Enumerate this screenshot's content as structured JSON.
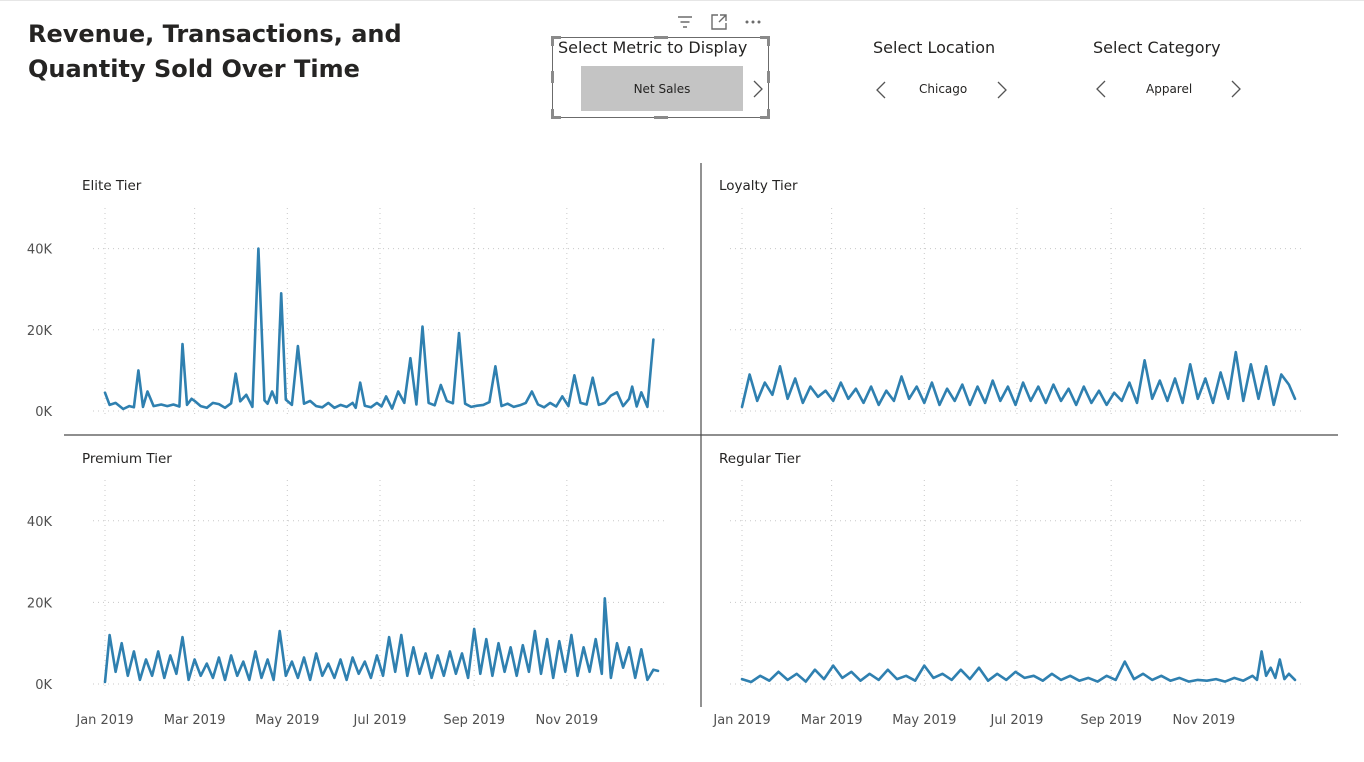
{
  "header": {
    "title": "Revenue, Transactions, and Quantity Sold Over Time"
  },
  "slicers": {
    "metric": {
      "header": "Select Metric to Display",
      "value": "Net Sales"
    },
    "location": {
      "header": "Select Location",
      "value": "Chicago"
    },
    "category": {
      "header": "Select Category",
      "value": "Apparel"
    }
  },
  "icons": {
    "visual_header": [
      "filter-icon",
      "focus-mode-icon",
      "more-options-icon"
    ],
    "slicer_nav": [
      "chevron-left-icon",
      "chevron-right-icon"
    ]
  },
  "colors": {
    "line": "#2F80B0",
    "grid": "#c8c8c8",
    "divider": "#4a4a4a"
  },
  "chart_data": [
    {
      "type": "line",
      "title": "Elite Tier",
      "xlim": [
        "2019-01-01",
        "2019-12-31"
      ],
      "ylim": [
        0,
        50000
      ],
      "y_ticks": [
        "0K",
        "20K",
        "40K"
      ],
      "x_ticks": [],
      "grid": true,
      "series": [
        {
          "x": [
            "2019-01-01",
            "2019-01-04",
            "2019-01-08",
            "2019-01-13",
            "2019-01-17",
            "2019-01-20",
            "2019-01-23",
            "2019-01-26",
            "2019-01-29",
            "2019-02-02",
            "2019-02-07",
            "2019-02-11",
            "2019-02-15",
            "2019-02-19",
            "2019-02-21",
            "2019-02-24",
            "2019-02-27",
            "2019-03-01",
            "2019-03-05",
            "2019-03-09",
            "2019-03-13",
            "2019-03-17",
            "2019-03-21",
            "2019-03-25",
            "2019-03-28",
            "2019-03-31",
            "2019-04-04",
            "2019-04-08",
            "2019-04-12",
            "2019-04-16",
            "2019-04-18",
            "2019-04-21",
            "2019-04-24",
            "2019-04-27",
            "2019-04-30",
            "2019-05-04",
            "2019-05-08",
            "2019-05-12",
            "2019-05-16",
            "2019-05-20",
            "2019-05-24",
            "2019-05-28",
            "2019-06-01",
            "2019-06-05",
            "2019-06-09",
            "2019-06-13",
            "2019-06-15",
            "2019-06-18",
            "2019-06-21",
            "2019-06-25",
            "2019-06-29",
            "2019-07-02",
            "2019-07-05",
            "2019-07-09",
            "2019-07-13",
            "2019-07-17",
            "2019-07-21",
            "2019-07-25",
            "2019-07-29",
            "2019-08-02",
            "2019-08-06",
            "2019-08-10",
            "2019-08-14",
            "2019-08-18",
            "2019-08-22",
            "2019-08-26",
            "2019-08-30",
            "2019-09-03",
            "2019-09-07",
            "2019-09-11",
            "2019-09-15",
            "2019-09-19",
            "2019-09-23",
            "2019-09-27",
            "2019-10-01",
            "2019-10-05",
            "2019-10-09",
            "2019-10-13",
            "2019-10-17",
            "2019-10-21",
            "2019-10-25",
            "2019-10-29",
            "2019-11-02",
            "2019-11-06",
            "2019-11-10",
            "2019-11-14",
            "2019-11-18",
            "2019-11-22",
            "2019-11-26",
            "2019-11-30",
            "2019-12-04",
            "2019-12-08",
            "2019-12-12",
            "2019-12-14",
            "2019-12-17",
            "2019-12-20",
            "2019-12-24",
            "2019-12-28"
          ],
          "y": [
            4500,
            1500,
            2000,
            500,
            1200,
            900,
            10000,
            1000,
            4800,
            1200,
            1600,
            1200,
            1600,
            1100,
            16500,
            1500,
            3000,
            2500,
            1200,
            800,
            2000,
            1700,
            800,
            1900,
            9200,
            2400,
            4000,
            1000,
            40000,
            2600,
            1800,
            4800,
            2000,
            29000,
            2800,
            1500,
            16000,
            1800,
            2500,
            1200,
            900,
            2000,
            800,
            1500,
            1000,
            2000,
            800,
            7000,
            1300,
            900,
            2000,
            1100,
            3600,
            600,
            4800,
            2000,
            13000,
            1600,
            20800,
            2000,
            1400,
            6400,
            2500,
            1900,
            19200,
            1800,
            1000,
            1300,
            1500,
            2200,
            11000,
            1200,
            1800,
            1000,
            1400,
            2000,
            4800,
            1600,
            900,
            2000,
            1100,
            3600,
            1200,
            8800,
            2000,
            1600,
            8200,
            1500,
            2000,
            3800,
            4600,
            1200,
            3000,
            6000,
            1100,
            4600,
            1000,
            17600
          ]
        }
      ]
    },
    {
      "type": "line",
      "title": "Loyalty Tier",
      "xlim": [
        "2019-01-01",
        "2019-12-31"
      ],
      "ylim": [
        0,
        50000
      ],
      "y_ticks": [],
      "x_ticks": [],
      "grid": true,
      "series": [
        {
          "x": [
            "2019-01-01",
            "2019-01-06",
            "2019-01-11",
            "2019-01-16",
            "2019-01-21",
            "2019-01-26",
            "2019-01-31",
            "2019-02-05",
            "2019-02-10",
            "2019-02-15",
            "2019-02-20",
            "2019-02-25",
            "2019-03-02",
            "2019-03-07",
            "2019-03-12",
            "2019-03-17",
            "2019-03-22",
            "2019-03-27",
            "2019-04-01",
            "2019-04-06",
            "2019-04-11",
            "2019-04-16",
            "2019-04-21",
            "2019-04-26",
            "2019-05-01",
            "2019-05-06",
            "2019-05-11",
            "2019-05-16",
            "2019-05-21",
            "2019-05-26",
            "2019-05-31",
            "2019-06-05",
            "2019-06-10",
            "2019-06-15",
            "2019-06-20",
            "2019-06-25",
            "2019-06-30",
            "2019-07-05",
            "2019-07-10",
            "2019-07-15",
            "2019-07-20",
            "2019-07-25",
            "2019-07-30",
            "2019-08-04",
            "2019-08-09",
            "2019-08-14",
            "2019-08-19",
            "2019-08-24",
            "2019-08-29",
            "2019-09-03",
            "2019-09-08",
            "2019-09-13",
            "2019-09-18",
            "2019-09-23",
            "2019-09-28",
            "2019-10-03",
            "2019-10-08",
            "2019-10-13",
            "2019-10-18",
            "2019-10-23",
            "2019-10-28",
            "2019-11-02",
            "2019-11-07",
            "2019-11-12",
            "2019-11-17",
            "2019-11-22",
            "2019-11-27",
            "2019-12-02",
            "2019-12-07",
            "2019-12-12",
            "2019-12-17",
            "2019-12-22",
            "2019-12-27",
            "2019-12-31"
          ],
          "y": [
            1000,
            9000,
            2500,
            7000,
            4000,
            11000,
            3000,
            8000,
            2000,
            6000,
            3500,
            5000,
            2500,
            7000,
            3000,
            5500,
            2000,
            6000,
            1500,
            5000,
            2500,
            8500,
            3000,
            6000,
            2000,
            7000,
            1500,
            5500,
            2500,
            6500,
            1500,
            6000,
            2000,
            7500,
            2500,
            6000,
            1500,
            7000,
            2500,
            6000,
            2000,
            6500,
            2500,
            5500,
            1500,
            6000,
            2000,
            5000,
            1500,
            4500,
            2500,
            7000,
            2000,
            12500,
            3000,
            7500,
            2500,
            8000,
            2000,
            11500,
            3000,
            8000,
            2000,
            9500,
            3000,
            14500,
            2500,
            11500,
            3000,
            11000,
            1500,
            9000,
            6500,
            3000
          ]
        }
      ]
    },
    {
      "type": "line",
      "title": "Premium Tier",
      "xlim": [
        "2019-01-01",
        "2019-12-31"
      ],
      "ylim": [
        0,
        50000
      ],
      "y_ticks": [
        "0K",
        "20K",
        "40K"
      ],
      "x_ticks": [
        "Jan 2019",
        "Mar 2019",
        "May 2019",
        "Jul 2019",
        "Sep 2019",
        "Nov 2019"
      ],
      "grid": true,
      "series": [
        {
          "x": [
            "2019-01-01",
            "2019-01-04",
            "2019-01-08",
            "2019-01-12",
            "2019-01-16",
            "2019-01-20",
            "2019-01-24",
            "2019-01-28",
            "2019-02-01",
            "2019-02-05",
            "2019-02-09",
            "2019-02-13",
            "2019-02-17",
            "2019-02-21",
            "2019-02-25",
            "2019-03-01",
            "2019-03-05",
            "2019-03-09",
            "2019-03-13",
            "2019-03-17",
            "2019-03-21",
            "2019-03-25",
            "2019-03-29",
            "2019-04-02",
            "2019-04-06",
            "2019-04-10",
            "2019-04-14",
            "2019-04-18",
            "2019-04-22",
            "2019-04-26",
            "2019-04-30",
            "2019-05-04",
            "2019-05-08",
            "2019-05-12",
            "2019-05-16",
            "2019-05-20",
            "2019-05-24",
            "2019-05-28",
            "2019-06-01",
            "2019-06-05",
            "2019-06-09",
            "2019-06-13",
            "2019-06-17",
            "2019-06-21",
            "2019-06-25",
            "2019-06-29",
            "2019-07-03",
            "2019-07-07",
            "2019-07-11",
            "2019-07-15",
            "2019-07-19",
            "2019-07-23",
            "2019-07-27",
            "2019-07-31",
            "2019-08-04",
            "2019-08-08",
            "2019-08-12",
            "2019-08-16",
            "2019-08-20",
            "2019-08-24",
            "2019-08-28",
            "2019-09-01",
            "2019-09-05",
            "2019-09-09",
            "2019-09-13",
            "2019-09-17",
            "2019-09-21",
            "2019-09-25",
            "2019-09-29",
            "2019-10-03",
            "2019-10-07",
            "2019-10-11",
            "2019-10-15",
            "2019-10-19",
            "2019-10-23",
            "2019-10-27",
            "2019-10-31",
            "2019-11-04",
            "2019-11-08",
            "2019-11-12",
            "2019-11-16",
            "2019-11-20",
            "2019-11-24",
            "2019-11-26",
            "2019-11-30",
            "2019-12-04",
            "2019-12-08",
            "2019-12-12",
            "2019-12-16",
            "2019-12-20",
            "2019-12-24",
            "2019-12-28",
            "2019-12-31"
          ],
          "y": [
            500,
            12000,
            3000,
            10000,
            2000,
            8000,
            1000,
            6000,
            2000,
            8000,
            1500,
            7000,
            2500,
            11500,
            1000,
            6000,
            2000,
            5000,
            1500,
            6500,
            1000,
            7000,
            2000,
            5500,
            1000,
            8000,
            1500,
            6000,
            1000,
            13000,
            2000,
            5500,
            1500,
            6500,
            1000,
            7500,
            2000,
            5000,
            1500,
            6000,
            1000,
            6500,
            2500,
            5500,
            1500,
            7000,
            2000,
            11500,
            3000,
            12000,
            2000,
            9000,
            2500,
            7500,
            1500,
            7000,
            2000,
            8000,
            2500,
            7500,
            1500,
            13500,
            2500,
            11000,
            2000,
            10000,
            3000,
            9000,
            2000,
            9500,
            3000,
            13000,
            2500,
            11000,
            1500,
            10500,
            3000,
            12000,
            2000,
            9000,
            3000,
            11000,
            2500,
            21000,
            1500,
            10000,
            4000,
            9000,
            1500,
            8500,
            1000,
            3500,
            3200
          ]
        }
      ]
    },
    {
      "type": "line",
      "title": "Regular Tier",
      "xlim": [
        "2019-01-01",
        "2019-12-31"
      ],
      "ylim": [
        0,
        50000
      ],
      "y_ticks": [],
      "x_ticks": [
        "Jan 2019",
        "Mar 2019",
        "May 2019",
        "Jul 2019",
        "Sep 2019",
        "Nov 2019"
      ],
      "grid": true,
      "series": [
        {
          "x": [
            "2019-01-01",
            "2019-01-07",
            "2019-01-13",
            "2019-01-19",
            "2019-01-25",
            "2019-01-31",
            "2019-02-06",
            "2019-02-12",
            "2019-02-18",
            "2019-02-24",
            "2019-03-02",
            "2019-03-08",
            "2019-03-14",
            "2019-03-20",
            "2019-03-26",
            "2019-04-01",
            "2019-04-07",
            "2019-04-13",
            "2019-04-19",
            "2019-04-25",
            "2019-05-01",
            "2019-05-07",
            "2019-05-13",
            "2019-05-19",
            "2019-05-25",
            "2019-05-31",
            "2019-06-06",
            "2019-06-12",
            "2019-06-18",
            "2019-06-24",
            "2019-06-30",
            "2019-07-06",
            "2019-07-12",
            "2019-07-18",
            "2019-07-24",
            "2019-07-30",
            "2019-08-05",
            "2019-08-11",
            "2019-08-17",
            "2019-08-23",
            "2019-08-29",
            "2019-09-04",
            "2019-09-10",
            "2019-09-16",
            "2019-09-22",
            "2019-09-28",
            "2019-10-04",
            "2019-10-10",
            "2019-10-16",
            "2019-10-22",
            "2019-10-28",
            "2019-11-03",
            "2019-11-09",
            "2019-11-15",
            "2019-11-21",
            "2019-11-27",
            "2019-12-03",
            "2019-12-06",
            "2019-12-09",
            "2019-12-12",
            "2019-12-15",
            "2019-12-18",
            "2019-12-21",
            "2019-12-24",
            "2019-12-27",
            "2019-12-31"
          ],
          "y": [
            1200,
            500,
            2000,
            800,
            3000,
            1000,
            2500,
            600,
            3500,
            1200,
            4500,
            1500,
            3000,
            800,
            2500,
            1000,
            3500,
            1200,
            2000,
            800,
            4500,
            1500,
            2500,
            1000,
            3500,
            1200,
            4000,
            800,
            2500,
            1000,
            3000,
            1500,
            2000,
            800,
            2500,
            1000,
            2000,
            800,
            1500,
            600,
            2000,
            1000,
            5500,
            1200,
            2500,
            1000,
            2000,
            800,
            1500,
            600,
            1000,
            800,
            1200,
            600,
            1500,
            800,
            2000,
            1000,
            8000,
            2000,
            4000,
            1500,
            6000,
            1200,
            2500,
            1000
          ]
        }
      ]
    }
  ]
}
